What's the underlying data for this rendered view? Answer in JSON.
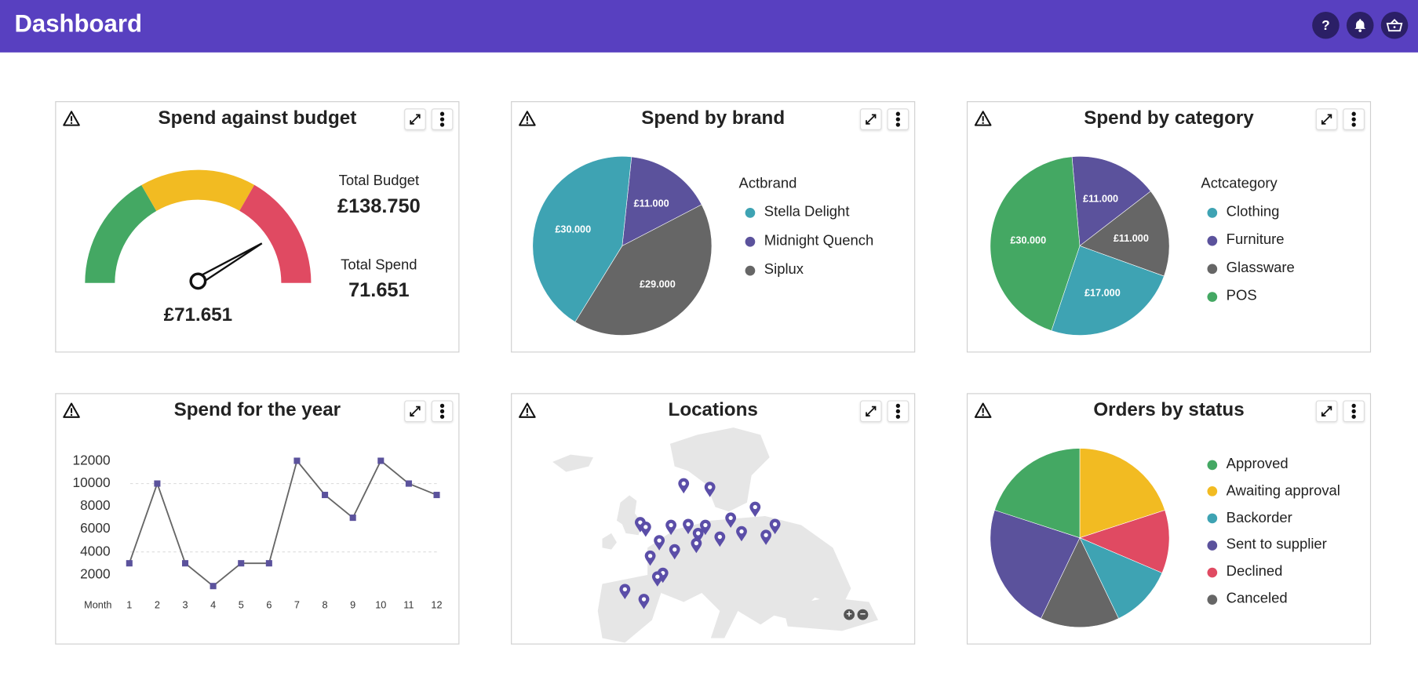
{
  "header": {
    "title": "Dashboard",
    "icons": [
      "help-icon",
      "bell-icon",
      "basket-icon"
    ],
    "color": "#5840c0"
  },
  "panels": {
    "budget": {
      "title": "Spend against budget",
      "total_budget_label": "Total Budget",
      "total_budget_value": "£138.750",
      "total_spend_label": "Total Spend",
      "total_spend_value": "71.651",
      "gauge_value_label": "£71.651",
      "gauge_needle_fraction": 0.83,
      "gauge_bands": [
        {
          "color": "#44a863",
          "from": 0,
          "to": 0.333
        },
        {
          "color": "#f2bb22",
          "from": 0.333,
          "to": 0.666
        },
        {
          "color": "#e04a62",
          "from": 0.666,
          "to": 1
        }
      ]
    },
    "brand": {
      "title": "Spend by brand"
    },
    "category": {
      "title": "Spend by category"
    },
    "year": {
      "title": "Spend for the year"
    },
    "locations": {
      "title": "Locations",
      "zoom_in": "+",
      "zoom_out": "−"
    },
    "orders": {
      "title": "Orders by status"
    }
  },
  "chart_data": [
    {
      "type": "pie",
      "title": "Spend by brand",
      "legend_title": "Actbrand",
      "legend_placement": "right",
      "slices": [
        {
          "name": "Midnight Quench",
          "value": 11000,
          "label": "£11.000",
          "color": "#5b529c"
        },
        {
          "name": "Siplux",
          "value": 29000,
          "label": "£29.000",
          "color": "#666666"
        },
        {
          "name": "Stella Delight",
          "value": 30000,
          "label": "£30.000",
          "color": "#3ea3b3"
        }
      ],
      "legend": [
        {
          "name": "Stella Delight",
          "color": "#3ea3b3"
        },
        {
          "name": "Midnight Quench",
          "color": "#5b529c"
        },
        {
          "name": "Siplux",
          "color": "#666666"
        }
      ]
    },
    {
      "type": "pie",
      "title": "Spend by category",
      "legend_title": "Actcategory",
      "legend_placement": "right",
      "slices": [
        {
          "name": "Furniture",
          "value": 11000,
          "label": "£11.000",
          "color": "#5b529c"
        },
        {
          "name": "Glassware",
          "value": 11000,
          "label": "£11.000",
          "color": "#666666"
        },
        {
          "name": "Clothing",
          "value": 17000,
          "label": "£17.000",
          "color": "#3ea3b3"
        },
        {
          "name": "POS",
          "value": 30000,
          "label": "£30.000",
          "color": "#44a863"
        }
      ],
      "legend": [
        {
          "name": "Clothing",
          "color": "#3ea3b3"
        },
        {
          "name": "Furniture",
          "color": "#5b529c"
        },
        {
          "name": "Glassware",
          "color": "#666666"
        },
        {
          "name": "POS",
          "color": "#44a863"
        }
      ]
    },
    {
      "type": "line",
      "title": "Spend for the year",
      "xlabel": "Month",
      "x": [
        1,
        2,
        3,
        4,
        5,
        6,
        7,
        8,
        9,
        10,
        11,
        12
      ],
      "y": [
        3000,
        10000,
        3000,
        1000,
        3000,
        3000,
        12000,
        9000,
        7000,
        12000,
        10000,
        9000
      ],
      "yticks": [
        2000,
        4000,
        6000,
        8000,
        10000,
        12000
      ],
      "ylim": [
        0,
        12000
      ],
      "gridlines": [
        4000,
        10000
      ],
      "line_color": "#666666",
      "marker_color": "#5b529c"
    },
    {
      "type": "pie",
      "title": "Orders by status",
      "legend_placement": "right",
      "slices": [
        {
          "name": "Awaiting approval",
          "value": 7,
          "color": "#f2bb22"
        },
        {
          "name": "Declined",
          "value": 4,
          "color": "#e04a62"
        },
        {
          "name": "Backorder",
          "value": 4,
          "color": "#3ea3b3"
        },
        {
          "name": "Canceled",
          "value": 5,
          "color": "#666666"
        },
        {
          "name": "Sent to supplier",
          "value": 8,
          "color": "#5b529c"
        },
        {
          "name": "Approved",
          "value": 7,
          "color": "#44a863"
        }
      ],
      "legend": [
        {
          "name": "Approved",
          "color": "#44a863"
        },
        {
          "name": "Awaiting approval",
          "color": "#f2bb22"
        },
        {
          "name": "Backorder",
          "color": "#3ea3b3"
        },
        {
          "name": "Sent to supplier",
          "color": "#5b529c"
        },
        {
          "name": "Declined",
          "color": "#e04a62"
        },
        {
          "name": "Canceled",
          "color": "#666666"
        }
      ]
    }
  ]
}
